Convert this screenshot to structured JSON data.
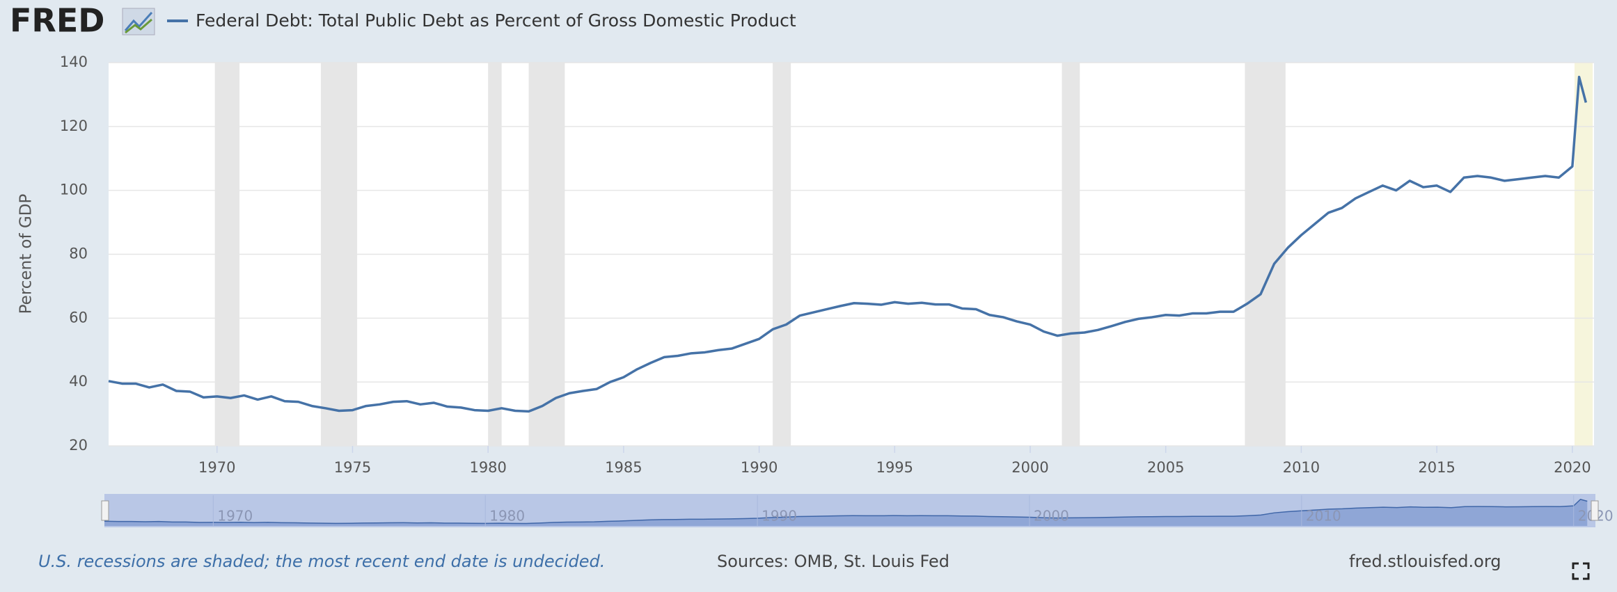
{
  "logo": "FRED",
  "chart_data": {
    "type": "line",
    "ylabel": "Percent of GDP",
    "x": [
      1966,
      1966.5,
      1967,
      1967.5,
      1968,
      1968.5,
      1969,
      1969.5,
      1970,
      1970.5,
      1971,
      1971.5,
      1972,
      1972.5,
      1973,
      1973.5,
      1974,
      1974.5,
      1975,
      1975.5,
      1976,
      1976.5,
      1977,
      1977.5,
      1978,
      1978.5,
      1979,
      1979.5,
      1980,
      1980.5,
      1981,
      1981.5,
      1982,
      1982.5,
      1983,
      1983.5,
      1984,
      1984.5,
      1985,
      1985.5,
      1986,
      1986.5,
      1987,
      1987.5,
      1988,
      1988.5,
      1989,
      1989.5,
      1990,
      1990.5,
      1991,
      1991.5,
      1992,
      1992.5,
      1993,
      1993.5,
      1994,
      1994.5,
      1995,
      1995.5,
      1996,
      1996.5,
      1997,
      1997.5,
      1998,
      1998.5,
      1999,
      1999.5,
      2000,
      2000.5,
      2001,
      2001.5,
      2002,
      2002.5,
      2003,
      2003.5,
      2004,
      2004.5,
      2005,
      2005.5,
      2006,
      2006.5,
      2007,
      2007.5,
      2008,
      2008.5,
      2009,
      2009.5,
      2010,
      2010.5,
      2011,
      2011.5,
      2012,
      2012.5,
      2013,
      2013.5,
      2014,
      2014.5,
      2015,
      2015.5,
      2016,
      2016.5,
      2017,
      2017.5,
      2018,
      2018.5,
      2019,
      2019.5,
      2020,
      2020.25,
      2020.5
    ],
    "series": [
      {
        "name": "Federal Debt: Total Public Debt as Percent of Gross Domestic Product",
        "color": "#4572a7",
        "values": [
          40.3,
          39.5,
          39.5,
          38.3,
          39.2,
          37.2,
          37,
          35.2,
          35.5,
          35,
          35.8,
          34.5,
          35.5,
          34,
          33.8,
          32.5,
          31.8,
          31,
          31.2,
          32.5,
          33,
          33.8,
          34,
          33,
          33.5,
          32.3,
          32,
          31.2,
          31,
          31.8,
          31,
          30.8,
          32.5,
          35,
          36.5,
          37.2,
          37.8,
          40,
          41.5,
          44,
          46,
          47.8,
          48.2,
          49,
          49.3,
          50,
          50.5,
          52,
          53.5,
          56.5,
          58,
          60.8,
          61.8,
          62.8,
          63.8,
          64.7,
          64.5,
          64.2,
          65,
          64.5,
          64.8,
          64.3,
          64.3,
          63,
          62.8,
          61,
          60.3,
          59,
          58,
          55.8,
          54.5,
          55.2,
          55.5,
          56.3,
          57.5,
          58.8,
          59.8,
          60.3,
          61,
          60.8,
          61.5,
          61.5,
          62,
          62,
          64.5,
          67.5,
          77,
          82,
          86,
          89.5,
          93,
          94.5,
          97.5,
          99.5,
          101.5,
          100,
          103,
          101,
          101.5,
          99.5,
          104,
          104.5,
          104,
          103,
          103.5,
          104,
          104.5,
          104,
          107.5,
          135.5,
          127.5
        ]
      }
    ],
    "xlim": [
      1966,
      2020.8
    ],
    "xticks": [
      1970,
      1975,
      1980,
      1985,
      1990,
      1995,
      2000,
      2005,
      2010,
      2015,
      2020
    ],
    "ylim": [
      20,
      140
    ],
    "yticks": [
      20,
      40,
      60,
      80,
      100,
      120,
      140
    ],
    "grid": true,
    "recessions": [
      [
        1969.92,
        1970.83
      ],
      [
        1973.83,
        1975.17
      ],
      [
        1980.0,
        1980.5
      ],
      [
        1981.5,
        1982.83
      ],
      [
        1990.5,
        1991.17
      ],
      [
        2001.17,
        2001.83
      ],
      [
        2007.92,
        2009.42
      ],
      [
        2020.08,
        2020.75
      ]
    ],
    "recession_color": "#e6e6e6",
    "undecided_recession_color": "#f6f5dc",
    "navigator_xticks": [
      1970,
      1980,
      1990,
      2000,
      2010,
      2020
    ],
    "note": "U.S. recessions are shaded; the most recent end date is undecided.",
    "sources": "Sources: OMB, St. Louis Fed",
    "site": "fred.stlouisfed.org"
  }
}
